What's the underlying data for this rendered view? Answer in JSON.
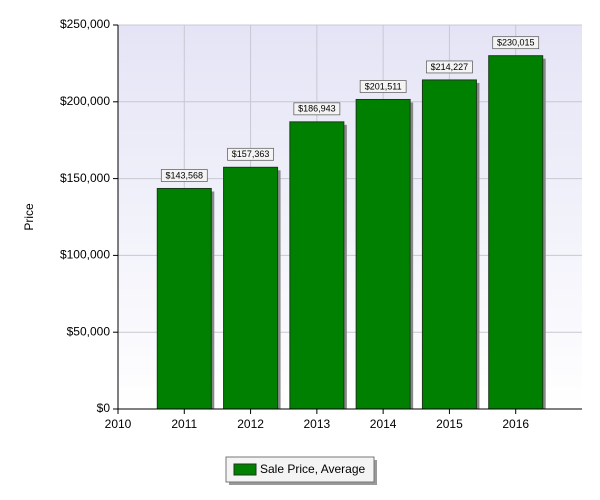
{
  "chart_data": {
    "type": "bar",
    "y_label": "Price",
    "x": [
      2011,
      2012,
      2013,
      2014,
      2015,
      2016
    ],
    "series": [
      {
        "name": "Sale Price, Average",
        "color": "#008000",
        "values": [
          143568,
          157363,
          186943,
          201511,
          214227,
          230015
        ],
        "value_labels": [
          "$143,568",
          "$157,363",
          "$186,943",
          "$201,511",
          "$214,227",
          "$230,015"
        ]
      }
    ],
    "xlim": [
      2010,
      2017
    ],
    "xticks": [
      2010,
      2011,
      2012,
      2013,
      2014,
      2015,
      2016
    ],
    "ylim": [
      0,
      250000
    ],
    "yticks": [
      {
        "value": 0,
        "label": "$0"
      },
      {
        "value": 50000,
        "label": "$50,000"
      },
      {
        "value": 100000,
        "label": "$100,000"
      },
      {
        "value": 150000,
        "label": "$150,000"
      },
      {
        "value": 200000,
        "label": "$200,000"
      },
      {
        "value": 250000,
        "label": "$250,000"
      }
    ],
    "grid": true
  }
}
